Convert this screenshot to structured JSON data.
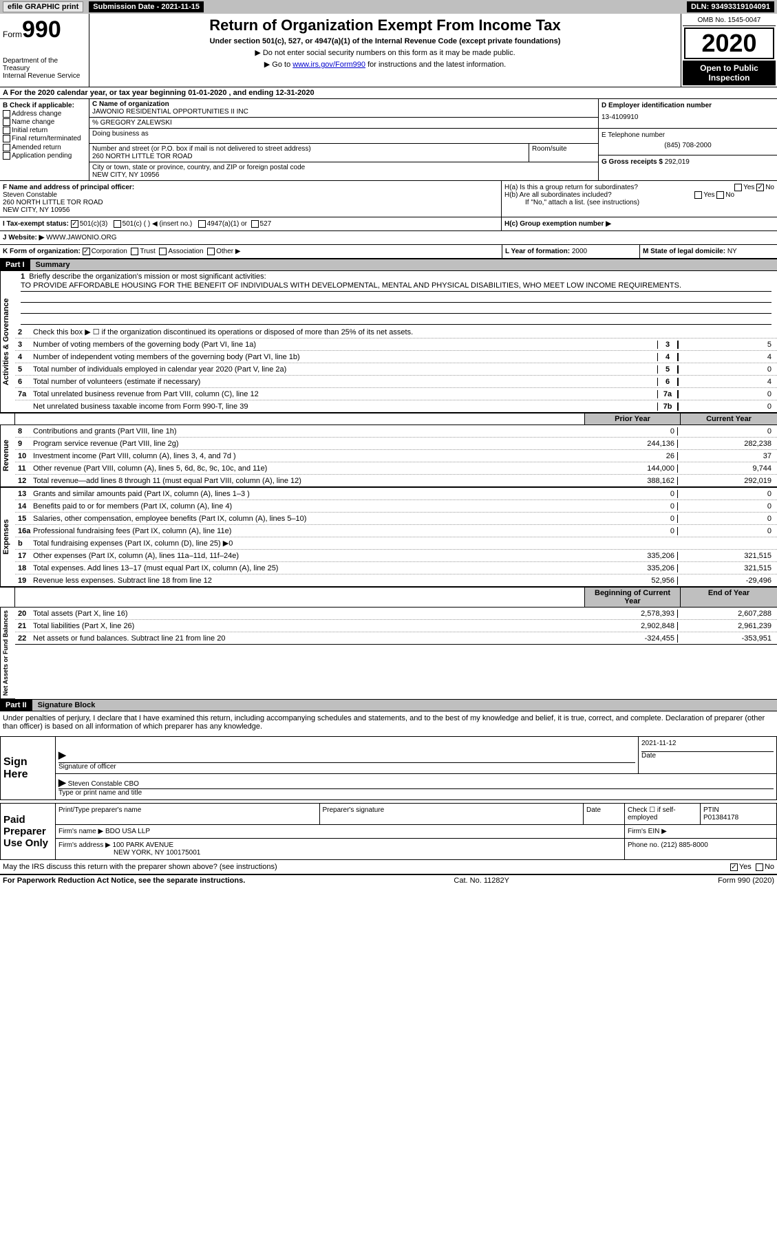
{
  "topbar": {
    "efile": "efile GRAPHIC print",
    "subdate_label": "Submission Date - ",
    "subdate": "2021-11-15",
    "dln_label": "DLN: ",
    "dln": "93493319104091"
  },
  "header": {
    "form_prefix": "Form",
    "form_num": "990",
    "title": "Return of Organization Exempt From Income Tax",
    "subtitle": "Under section 501(c), 527, or 4947(a)(1) of the Internal Revenue Code (except private foundations)",
    "note1": "▶ Do not enter social security numbers on this form as it may be made public.",
    "note2_pre": "▶ Go to ",
    "note2_link": "www.irs.gov/Form990",
    "note2_post": " for instructions and the latest information.",
    "dept": "Department of the Treasury\nInternal Revenue Service",
    "omb": "OMB No. 1545-0047",
    "year": "2020",
    "open": "Open to Public Inspection"
  },
  "period": {
    "text": "A For the 2020 calendar year, or tax year beginning 01-01-2020    , and ending 12-31-2020"
  },
  "blockB": {
    "label": "B Check if applicable:",
    "addr": "Address change",
    "name": "Name change",
    "initial": "Initial return",
    "final": "Final return/terminated",
    "amended": "Amended return",
    "app": "Application pending"
  },
  "blockC": {
    "name_label": "C Name of organization",
    "name": "JAWONIO RESIDENTIAL OPPORTUNITIES II INC",
    "care_of": "% GREGORY ZALEWSKI",
    "dba": "Doing business as",
    "addr_label": "Number and street (or P.O. box if mail is not delivered to street address)",
    "addr": "260 NORTH LITTLE TOR ROAD",
    "room": "Room/suite",
    "city_label": "City or town, state or province, country, and ZIP or foreign postal code",
    "city": "NEW CITY, NY  10956"
  },
  "blockD": {
    "ein_label": "D Employer identification number",
    "ein": "13-4109910",
    "phone_label": "E Telephone number",
    "phone": "(845) 708-2000",
    "gross_label": "G Gross receipts $ ",
    "gross": "292,019"
  },
  "blockF": {
    "label": "F Name and address of principal officer:",
    "name": "Steven Constable",
    "addr1": "260 NORTH LITTLE TOR ROAD",
    "addr2": "NEW CITY, NY  10956"
  },
  "blockH": {
    "a": "H(a)  Is this a group return for subordinates?",
    "b": "H(b)  Are all subordinates included?",
    "b_note": "If \"No,\" attach a list. (see instructions)",
    "c": "H(c)  Group exemption number ▶",
    "yes": "Yes",
    "no": "No"
  },
  "blockI": {
    "label": "I    Tax-exempt status:",
    "c3": "501(c)(3)",
    "c": "501(c) ( ) ◀ (insert no.)",
    "a1": "4947(a)(1) or",
    "527": "527"
  },
  "blockJ": {
    "label": "J   Website: ▶  ",
    "site": "WWW.JAWONIO.ORG"
  },
  "blockK": {
    "label": "K Form of organization:",
    "corp": "Corporation",
    "trust": "Trust",
    "assoc": "Association",
    "other": "Other ▶"
  },
  "blockL": {
    "label": "L Year of formation: ",
    "val": "2000"
  },
  "blockM": {
    "label": "M State of legal domicile: ",
    "val": "NY"
  },
  "part1": {
    "header": "Part I",
    "title": "Summary",
    "q1": "Briefly describe the organization's mission or most significant activities:",
    "mission": "TO PROVIDE AFFORDABLE HOUSING FOR THE BENEFIT OF INDIVIDUALS WITH DEVELOPMENTAL, MENTAL AND PHYSICAL DISABILITIES, WHO MEET LOW INCOME REQUIREMENTS.",
    "q2": "Check this box ▶ ☐  if the organization discontinued its operations or disposed of more than 25% of its net assets.",
    "vlabel_gov": "Activities & Governance",
    "vlabel_rev": "Revenue",
    "vlabel_exp": "Expenses",
    "vlabel_net": "Net Assets or Fund Balances",
    "prior_hdr": "Prior Year",
    "curr_hdr": "Current Year",
    "begin_hdr": "Beginning of Current Year",
    "end_hdr": "End of Year",
    "lines_gov": [
      {
        "n": "3",
        "d": "Number of voting members of the governing body (Part VI, line 1a)",
        "box": "3",
        "v": "5"
      },
      {
        "n": "4",
        "d": "Number of independent voting members of the governing body (Part VI, line 1b)",
        "box": "4",
        "v": "4"
      },
      {
        "n": "5",
        "d": "Total number of individuals employed in calendar year 2020 (Part V, line 2a)",
        "box": "5",
        "v": "0"
      },
      {
        "n": "6",
        "d": "Total number of volunteers (estimate if necessary)",
        "box": "6",
        "v": "4"
      },
      {
        "n": "7a",
        "d": "Total unrelated business revenue from Part VIII, column (C), line 12",
        "box": "7a",
        "v": "0"
      },
      {
        "n": "",
        "d": "Net unrelated business taxable income from Form 990-T, line 39",
        "box": "7b",
        "v": "0"
      }
    ],
    "lines_rev": [
      {
        "n": "8",
        "d": "Contributions and grants (Part VIII, line 1h)",
        "p": "0",
        "c": "0"
      },
      {
        "n": "9",
        "d": "Program service revenue (Part VIII, line 2g)",
        "p": "244,136",
        "c": "282,238"
      },
      {
        "n": "10",
        "d": "Investment income (Part VIII, column (A), lines 3, 4, and 7d )",
        "p": "26",
        "c": "37"
      },
      {
        "n": "11",
        "d": "Other revenue (Part VIII, column (A), lines 5, 6d, 8c, 9c, 10c, and 11e)",
        "p": "144,000",
        "c": "9,744"
      },
      {
        "n": "12",
        "d": "Total revenue—add lines 8 through 11 (must equal Part VIII, column (A), line 12)",
        "p": "388,162",
        "c": "292,019"
      }
    ],
    "lines_exp": [
      {
        "n": "13",
        "d": "Grants and similar amounts paid (Part IX, column (A), lines 1–3 )",
        "p": "0",
        "c": "0"
      },
      {
        "n": "14",
        "d": "Benefits paid to or for members (Part IX, column (A), line 4)",
        "p": "0",
        "c": "0"
      },
      {
        "n": "15",
        "d": "Salaries, other compensation, employee benefits (Part IX, column (A), lines 5–10)",
        "p": "0",
        "c": "0"
      },
      {
        "n": "16a",
        "d": "Professional fundraising fees (Part IX, column (A), line 11e)",
        "p": "0",
        "c": "0"
      },
      {
        "n": "b",
        "d": "Total fundraising expenses (Part IX, column (D), line 25) ▶0",
        "p": "",
        "c": "",
        "gray": true
      },
      {
        "n": "17",
        "d": "Other expenses (Part IX, column (A), lines 11a–11d, 11f–24e)",
        "p": "335,206",
        "c": "321,515"
      },
      {
        "n": "18",
        "d": "Total expenses. Add lines 13–17 (must equal Part IX, column (A), line 25)",
        "p": "335,206",
        "c": "321,515"
      },
      {
        "n": "19",
        "d": "Revenue less expenses. Subtract line 18 from line 12",
        "p": "52,956",
        "c": "-29,496"
      }
    ],
    "lines_net": [
      {
        "n": "20",
        "d": "Total assets (Part X, line 16)",
        "p": "2,578,393",
        "c": "2,607,288"
      },
      {
        "n": "21",
        "d": "Total liabilities (Part X, line 26)",
        "p": "2,902,848",
        "c": "2,961,239"
      },
      {
        "n": "22",
        "d": "Net assets or fund balances. Subtract line 21 from line 20",
        "p": "-324,455",
        "c": "-353,951"
      }
    ]
  },
  "part2": {
    "header": "Part II",
    "title": "Signature Block",
    "decl": "Under penalties of perjury, I declare that I have examined this return, including accompanying schedules and statements, and to the best of my knowledge and belief, it is true, correct, and complete. Declaration of preparer (other than officer) is based on all information of which preparer has any knowledge."
  },
  "sign": {
    "here": "Sign Here",
    "sig_officer": "Signature of officer",
    "date": "Date",
    "sig_date": "2021-11-12",
    "name": "Steven Constable CBO",
    "type_name": "Type or print name and title"
  },
  "paid": {
    "label": "Paid Preparer Use Only",
    "print_name": "Print/Type preparer's name",
    "prep_sig": "Preparer's signature",
    "date": "Date",
    "check": "Check ☐ if self-employed",
    "ptin_label": "PTIN",
    "ptin": "P01384178",
    "firm_name_label": "Firm's name    ▶ ",
    "firm_name": "BDO USA LLP",
    "firm_ein": "Firm's EIN ▶",
    "firm_addr_label": "Firm's address ▶ ",
    "firm_addr": "100 PARK AVENUE",
    "firm_city": "NEW YORK, NY  100175001",
    "phone_label": "Phone no. ",
    "phone": "(212) 885-8000"
  },
  "discuss": {
    "q": "May the IRS discuss this return with the preparer shown above? (see instructions)",
    "yes": "Yes",
    "no": "No"
  },
  "footer": {
    "left": "For Paperwork Reduction Act Notice, see the separate instructions.",
    "mid": "Cat. No. 11282Y",
    "right": "Form 990 (2020)"
  }
}
